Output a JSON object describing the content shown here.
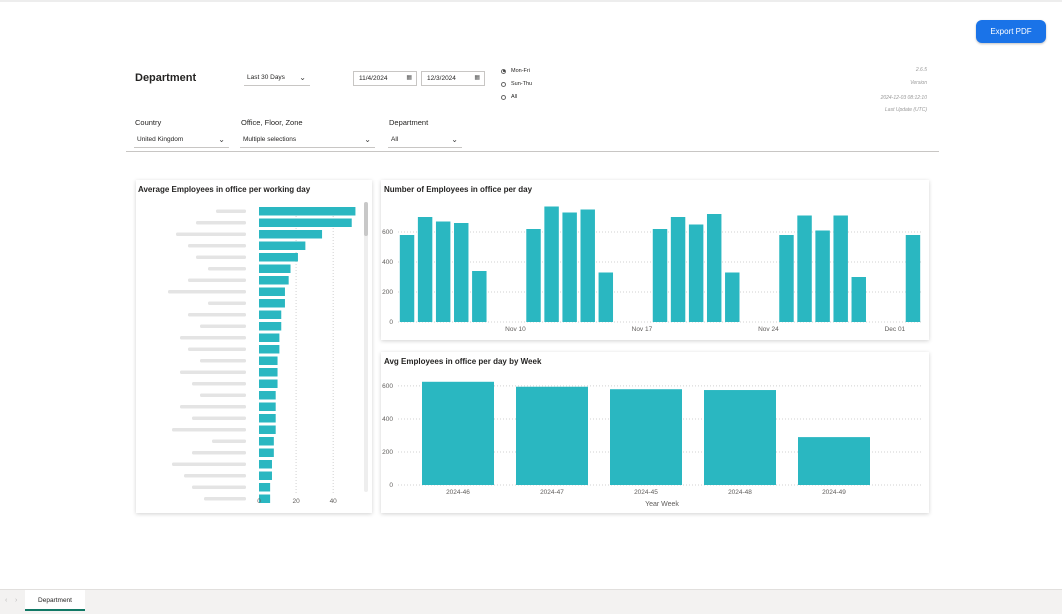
{
  "export_button": "Export PDF",
  "page_title": "Department",
  "period_dropdown": "Last 30 Days",
  "date_start": "11/4/2024",
  "date_end": "12/3/2024",
  "week_options": [
    {
      "label": "Mon-Fri",
      "selected": true
    },
    {
      "label": "Sun-Thu",
      "selected": false
    },
    {
      "label": "All",
      "selected": false
    }
  ],
  "meta": {
    "version_value": "2.6.5",
    "version_label": "Version",
    "update_value": "2024-12-03 08:12:10",
    "update_label": "Last Update (UTC)"
  },
  "filters": {
    "country_label": "Country",
    "country_value": "United Kingdom",
    "office_label": "Office, Floor, Zone",
    "office_value": "Multiple selections",
    "department_label": "Department",
    "department_value": "All"
  },
  "tab_label": "Department",
  "colors": {
    "bar": "#2ab7c1",
    "accent": "#1a73e8",
    "tab_underline": "#117865"
  },
  "chart_data": [
    {
      "type": "bar",
      "orientation": "horizontal",
      "title": "Average Employees in office per working day",
      "values": [
        52,
        50,
        34,
        25,
        21,
        17,
        16,
        14,
        14,
        12,
        12,
        11,
        11,
        10,
        10,
        10,
        9,
        9,
        9,
        9,
        8,
        8,
        7,
        7,
        6,
        6
      ],
      "xticks": [
        "0",
        "20",
        "40"
      ],
      "xlim": [
        0,
        55
      ]
    },
    {
      "type": "bar",
      "title": "Number of Employees in office per day",
      "values": [
        580,
        700,
        670,
        660,
        340,
        null,
        null,
        620,
        770,
        730,
        750,
        330,
        null,
        null,
        620,
        700,
        650,
        720,
        330,
        null,
        null,
        580,
        710,
        610,
        710,
        300,
        null,
        null,
        580
      ],
      "xticks": [
        "Nov 10",
        "Nov 17",
        "Nov 24",
        "Dec 01"
      ],
      "yticks": [
        "0",
        "200",
        "400",
        "600"
      ],
      "ylim": [
        0,
        800
      ]
    },
    {
      "type": "bar",
      "title": "Avg Employees in office per day by Week",
      "categories": [
        "2024-46",
        "2024-47",
        "2024-45",
        "2024-48",
        "2024-49"
      ],
      "values": [
        625,
        595,
        580,
        575,
        290
      ],
      "yticks": [
        "0",
        "200",
        "400",
        "600"
      ],
      "ylim": [
        0,
        660
      ],
      "xlabel": "Year Week"
    }
  ]
}
